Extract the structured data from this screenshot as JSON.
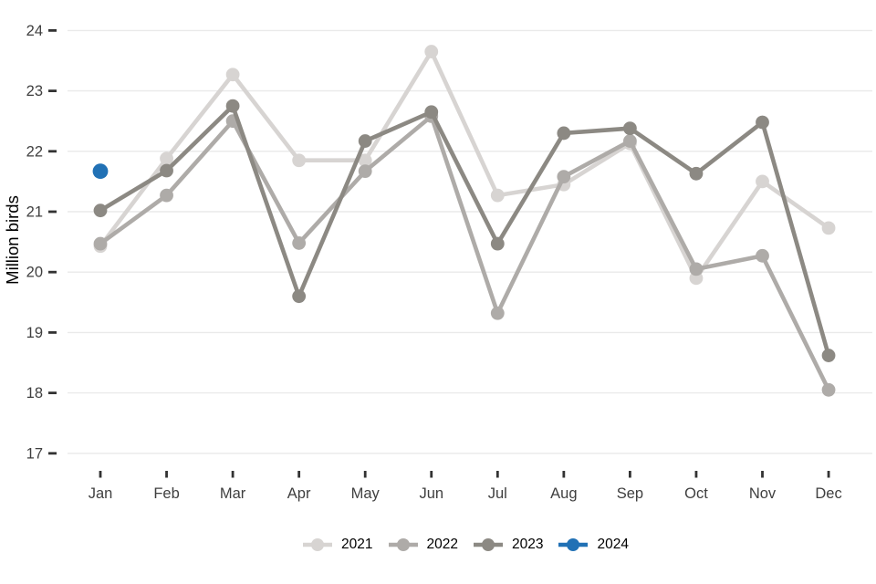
{
  "chart_data": {
    "type": "line",
    "title": "",
    "xlabel": "",
    "ylabel": "Million birds",
    "x_categories": [
      "Jan",
      "Feb",
      "Mar",
      "Apr",
      "May",
      "Jun",
      "Jul",
      "Aug",
      "Sep",
      "Oct",
      "Nov",
      "Dec"
    ],
    "y_ticks": [
      17,
      18,
      19,
      20,
      21,
      22,
      23,
      24
    ],
    "ylim": [
      16.7,
      24.2
    ],
    "grid": "horizontal-only",
    "grid_color": "#eaeaea",
    "tick_color": "#333333",
    "label_color": "#3f3f3f",
    "legend_position": "bottom-center",
    "series": [
      {
        "name": "2021",
        "color": "#d7d4d2",
        "values": [
          20.43,
          21.88,
          23.27,
          21.85,
          21.85,
          23.65,
          21.27,
          21.45,
          22.13,
          19.9,
          21.5,
          20.73
        ]
      },
      {
        "name": "2022",
        "color": "#aeaba8",
        "values": [
          20.47,
          21.27,
          22.5,
          20.48,
          21.67,
          22.58,
          19.32,
          21.58,
          22.17,
          20.05,
          20.27,
          18.05
        ]
      },
      {
        "name": "2023",
        "color": "#8c8983",
        "values": [
          21.02,
          21.68,
          22.75,
          19.6,
          22.17,
          22.65,
          20.47,
          22.3,
          22.38,
          21.63,
          22.48,
          18.62
        ]
      },
      {
        "name": "2024",
        "color": "#2171b5",
        "values": [
          21.67
        ]
      }
    ]
  }
}
